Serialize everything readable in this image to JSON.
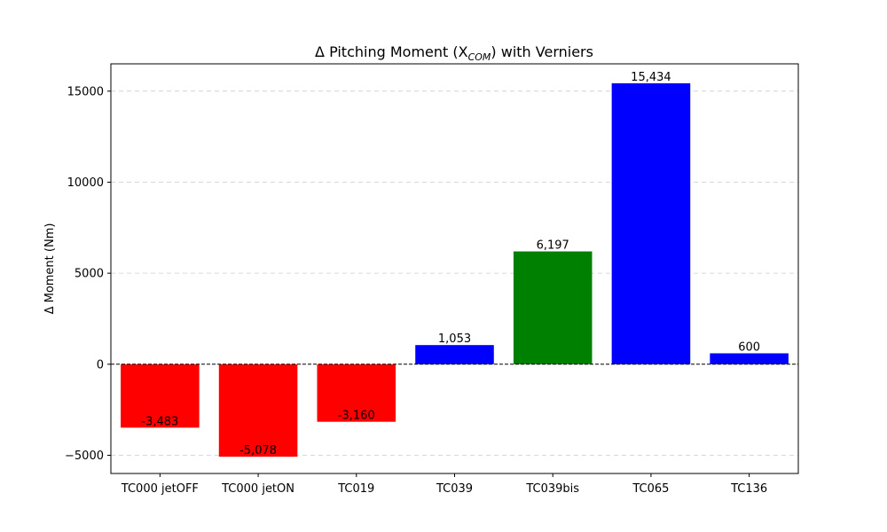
{
  "chart_data": {
    "type": "bar",
    "title": "Δ Pitching Moment (X",
    "title_sub": "COM",
    "title_suffix": ") with Verniers",
    "xlabel": "",
    "ylabel": "Δ Moment (Nm)",
    "categories": [
      "TC000 jetOFF",
      "TC000 jetON",
      "TC019",
      "TC039",
      "TC039bis",
      "TC065",
      "TC136"
    ],
    "values": [
      -3483,
      -5078,
      -3160,
      1053,
      6197,
      15434,
      600
    ],
    "value_labels": [
      "-3,483",
      "-5,078",
      "-3,160",
      "1,053",
      "6,197",
      "15,434",
      "600"
    ],
    "bar_colors": [
      "#ff0000",
      "#ff0000",
      "#ff0000",
      "#0000ff",
      "#008000",
      "#0000ff",
      "#0000ff"
    ],
    "ylim": [
      -6000,
      16500
    ],
    "yticks": [
      -5000,
      0,
      5000,
      10000,
      15000
    ],
    "ytick_labels": [
      "−5000",
      "0",
      "5000",
      "10000",
      "15000"
    ],
    "grid": "y-dashed",
    "zero_line": "dashed"
  }
}
